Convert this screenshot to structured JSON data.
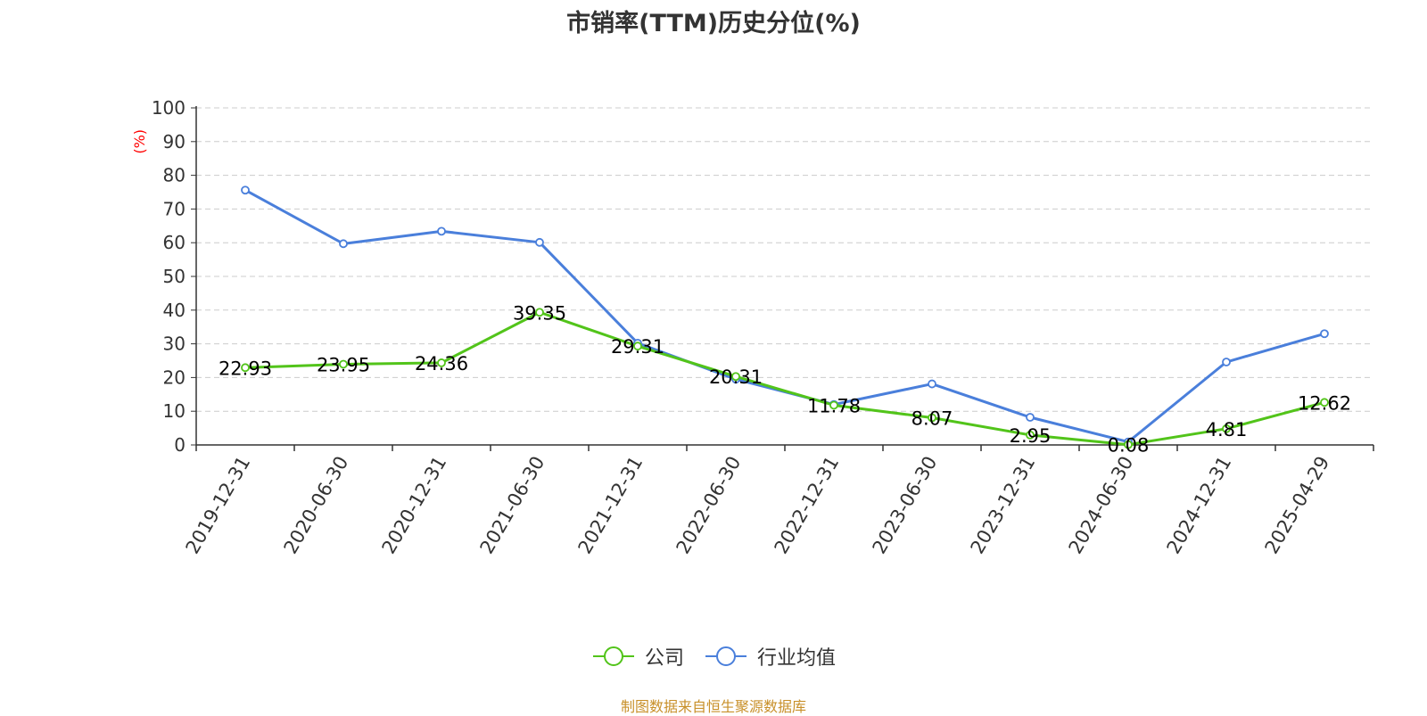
{
  "chart_data": {
    "type": "line",
    "title": "市销率(TTM)历史分位(%)",
    "ylabel": "(%)",
    "ylim": [
      0,
      100
    ],
    "yticks": [
      0,
      10,
      20,
      30,
      40,
      50,
      60,
      70,
      80,
      90,
      100
    ],
    "categories": [
      "2019-12-31",
      "2020-06-30",
      "2020-12-31",
      "2021-06-30",
      "2021-12-31",
      "2022-06-30",
      "2022-12-31",
      "2023-06-30",
      "2023-12-31",
      "2024-06-30",
      "2024-12-31",
      "2025-04-29"
    ],
    "series": [
      {
        "name": "公司",
        "color": "#52c41a",
        "values": [
          22.93,
          23.95,
          24.36,
          39.35,
          29.31,
          20.31,
          11.78,
          8.07,
          2.95,
          0.08,
          4.81,
          12.62
        ],
        "labels": [
          "22.93",
          "23.95",
          "24.36",
          "39.35",
          "29.31",
          "20.31",
          "11.78",
          "8.07",
          "2.95",
          "0.08",
          "4.81",
          "12.62"
        ]
      },
      {
        "name": "行业均值",
        "color": "#4a7fdb",
        "values": [
          75.6,
          59.7,
          63.4,
          60.1,
          30.2,
          19.5,
          12.0,
          18.1,
          8.2,
          0.9,
          24.6,
          33.0
        ]
      }
    ],
    "grid": true,
    "legend_position": "bottom"
  },
  "footer": "制图数据来自恒生聚源数据库"
}
